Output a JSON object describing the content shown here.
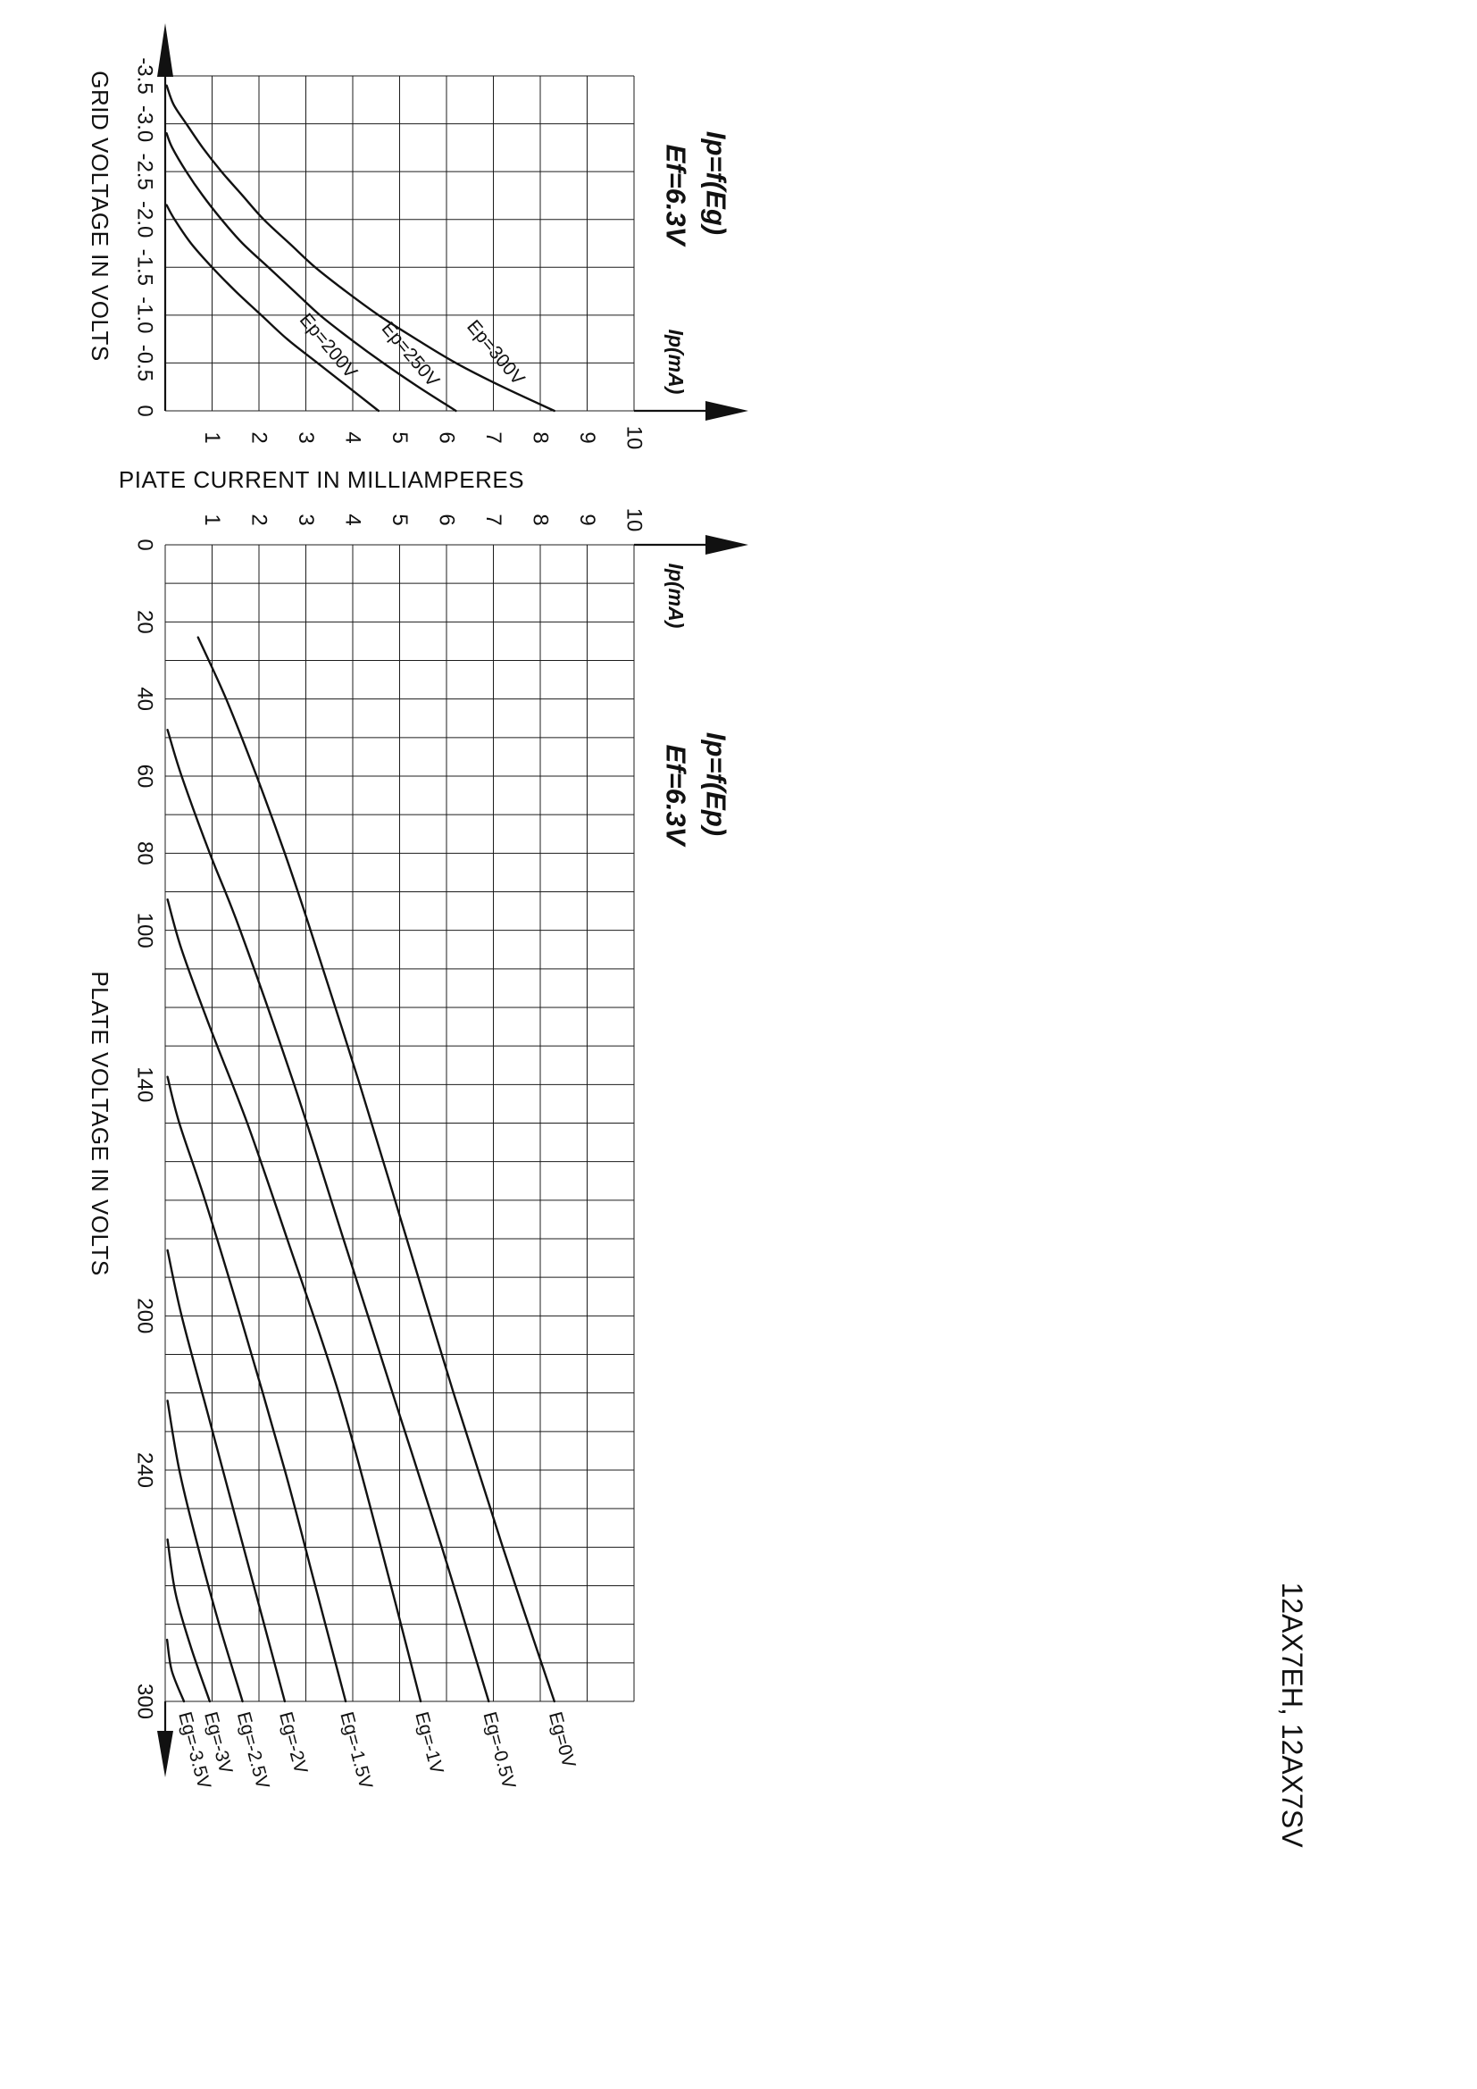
{
  "document": {
    "part_number": "12AX7EH, 12AX7SV"
  },
  "colors": {
    "ink": "#111111",
    "background": "#ffffff"
  },
  "chart_data": [
    {
      "type": "line",
      "title": "Ip=f(Eg)",
      "subtitle": "Ef=6.3V",
      "xlabel": "GRID VOLTAGE IN VOLTS",
      "ylabel": "PIATE CURRENT IN MILLIAMPERES",
      "y_unit_label": "Ip(mA)",
      "xlim": [
        -3.5,
        0
      ],
      "ylim": [
        0,
        10
      ],
      "grid": true,
      "x_ticks": [
        "-3.5",
        "-3.0",
        "-2.5",
        "-2.0",
        "-1.5",
        "-1.0",
        "-0.5",
        "0"
      ],
      "y_ticks": [
        "1",
        "2",
        "3",
        "4",
        "5",
        "6",
        "7",
        "8",
        "9",
        "10"
      ],
      "series": [
        {
          "name": "Ep=200V",
          "label_at": [
            -0.95,
            2.85
          ],
          "points": [
            [
              -2.15,
              0.03
            ],
            [
              -2.0,
              0.2
            ],
            [
              -1.75,
              0.55
            ],
            [
              -1.5,
              1.0
            ],
            [
              -1.25,
              1.5
            ],
            [
              -1.0,
              2.05
            ],
            [
              -0.75,
              2.6
            ],
            [
              -0.5,
              3.25
            ],
            [
              -0.25,
              3.9
            ],
            [
              0,
              4.55
            ]
          ]
        },
        {
          "name": "Ep=250V",
          "label_at": [
            -0.86,
            4.6
          ],
          "points": [
            [
              -2.9,
              0.03
            ],
            [
              -2.75,
              0.15
            ],
            [
              -2.5,
              0.45
            ],
            [
              -2.25,
              0.8
            ],
            [
              -2.0,
              1.2
            ],
            [
              -1.75,
              1.65
            ],
            [
              -1.5,
              2.2
            ],
            [
              -1.25,
              2.75
            ],
            [
              -1.0,
              3.3
            ],
            [
              -0.75,
              3.95
            ],
            [
              -0.5,
              4.65
            ],
            [
              -0.25,
              5.4
            ],
            [
              0,
              6.2
            ]
          ]
        },
        {
          "name": "Ep=300V",
          "label_at": [
            -0.88,
            6.42
          ],
          "points": [
            [
              -3.4,
              0.03
            ],
            [
              -3.2,
              0.18
            ],
            [
              -3.0,
              0.45
            ],
            [
              -2.75,
              0.8
            ],
            [
              -2.5,
              1.2
            ],
            [
              -2.25,
              1.65
            ],
            [
              -2.0,
              2.1
            ],
            [
              -1.75,
              2.65
            ],
            [
              -1.5,
              3.2
            ],
            [
              -1.25,
              3.85
            ],
            [
              -1.0,
              4.55
            ],
            [
              -0.75,
              5.35
            ],
            [
              -0.5,
              6.2
            ],
            [
              -0.25,
              7.2
            ],
            [
              0,
              8.3
            ]
          ]
        }
      ]
    },
    {
      "type": "line",
      "title": "Ip=f(Ep)",
      "subtitle": "Ef=6.3V",
      "xlabel": "PLATE VOLTAGE IN VOLTS",
      "ylabel": "PIATE CURRENT IN MILLIAMPERES",
      "y_unit_label": "Ip(mA)",
      "xlim": [
        0,
        300
      ],
      "ylim": [
        0,
        10
      ],
      "grid": true,
      "x_ticks": [
        "0",
        "20",
        "40",
        "60",
        "80",
        "100",
        "140",
        "200",
        "240",
        "300"
      ],
      "y_ticks": [
        "1",
        "2",
        "3",
        "4",
        "5",
        "6",
        "7",
        "8",
        "9",
        "10"
      ],
      "series": [
        {
          "name": "Eg=0V",
          "points": [
            [
              24,
              0.7
            ],
            [
              40,
              1.3
            ],
            [
              60,
              1.95
            ],
            [
              80,
              2.55
            ],
            [
              100,
              3.1
            ],
            [
              140,
              4.15
            ],
            [
              180,
              5.15
            ],
            [
              220,
              6.15
            ],
            [
              260,
              7.2
            ],
            [
              300,
              8.3
            ]
          ]
        },
        {
          "name": "Eg=-0.5V",
          "points": [
            [
              48,
              0.05
            ],
            [
              60,
              0.35
            ],
            [
              80,
              0.95
            ],
            [
              100,
              1.6
            ],
            [
              140,
              2.75
            ],
            [
              180,
              3.8
            ],
            [
              220,
              4.85
            ],
            [
              260,
              5.9
            ],
            [
              300,
              6.9
            ]
          ]
        },
        {
          "name": "Eg=-1V",
          "points": [
            [
              92,
              0.05
            ],
            [
              105,
              0.35
            ],
            [
              125,
              0.95
            ],
            [
              150,
              1.75
            ],
            [
              180,
              2.6
            ],
            [
              220,
              3.7
            ],
            [
              260,
              4.6
            ],
            [
              300,
              5.45
            ]
          ]
        },
        {
          "name": "Eg=-1.5V",
          "points": [
            [
              138,
              0.05
            ],
            [
              150,
              0.3
            ],
            [
              170,
              0.85
            ],
            [
              200,
              1.6
            ],
            [
              240,
              2.55
            ],
            [
              270,
              3.2
            ],
            [
              300,
              3.85
            ]
          ]
        },
        {
          "name": "Eg=-2V",
          "points": [
            [
              183,
              0.05
            ],
            [
              200,
              0.35
            ],
            [
              225,
              0.9
            ],
            [
              250,
              1.45
            ],
            [
              275,
              2.0
            ],
            [
              300,
              2.55
            ]
          ]
        },
        {
          "name": "Eg=-2.5V",
          "points": [
            [
              222,
              0.05
            ],
            [
              240,
              0.3
            ],
            [
              260,
              0.7
            ],
            [
              280,
              1.15
            ],
            [
              300,
              1.65
            ]
          ]
        },
        {
          "name": "Eg=-3V",
          "points": [
            [
              258,
              0.05
            ],
            [
              272,
              0.22
            ],
            [
              286,
              0.55
            ],
            [
              300,
              0.95
            ]
          ]
        },
        {
          "name": "Eg=-3.5V",
          "points": [
            [
              284,
              0.04
            ],
            [
              292,
              0.14
            ],
            [
              300,
              0.4
            ]
          ]
        }
      ]
    }
  ]
}
